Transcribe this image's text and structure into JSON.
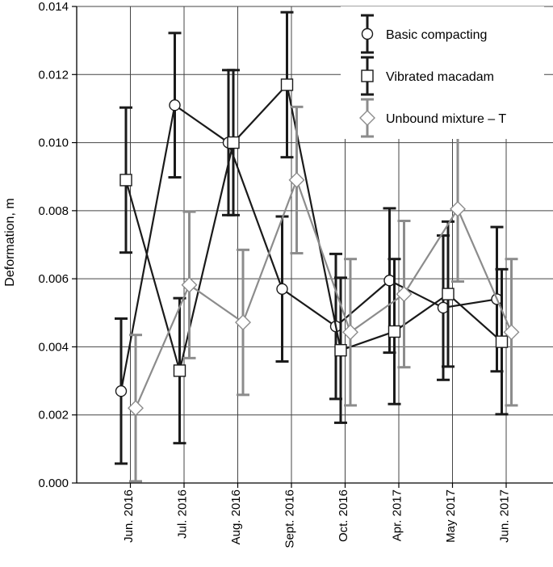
{
  "chart_data": {
    "type": "line",
    "title": "",
    "xlabel": "",
    "ylabel": "Deformation, m",
    "ylim": [
      0,
      0.014
    ],
    "yticks": [
      "0.000",
      "0.002",
      "0.004",
      "0.006",
      "0.008",
      "0.010",
      "0.012",
      "0.014"
    ],
    "categories": [
      "Jun. 2016",
      "Jul. 2016",
      "Aug. 2016",
      "Sept. 2016",
      "Oct. 2016",
      "Apr. 2017",
      "May 2017",
      "Jun. 2017"
    ],
    "grid": true,
    "legend_position": "top-right",
    "series": [
      {
        "name": "Basic compacting",
        "marker": "circle",
        "color": "#1a1a1a",
        "values": [
          0.0027,
          0.0111,
          0.01,
          0.0057,
          0.0046,
          0.00595,
          0.00515,
          0.0054
        ],
        "errors": [
          0.00213,
          0.00212,
          0.00213,
          0.00213,
          0.00213,
          0.00212,
          0.00212,
          0.00212
        ]
      },
      {
        "name": "Vibrated macadam",
        "marker": "square",
        "color": "#1a1a1a",
        "values": [
          0.0089,
          0.0033,
          0.01,
          0.0117,
          0.0039,
          0.00445,
          0.00555,
          0.00415
        ],
        "errors": [
          0.00213,
          0.00213,
          0.00213,
          0.00213,
          0.00213,
          0.00213,
          0.00213,
          0.00213
        ]
      },
      {
        "name": "Unbound mixture – T",
        "marker": "diamond",
        "color": "#8c8c8c",
        "values": [
          0.0022,
          0.00582,
          0.00472,
          0.0089,
          0.00443,
          0.00555,
          0.00805,
          0.00443
        ],
        "errors": [
          0.00215,
          0.00215,
          0.00213,
          0.00215,
          0.00215,
          0.00215,
          0.00213,
          0.00215
        ]
      }
    ]
  }
}
